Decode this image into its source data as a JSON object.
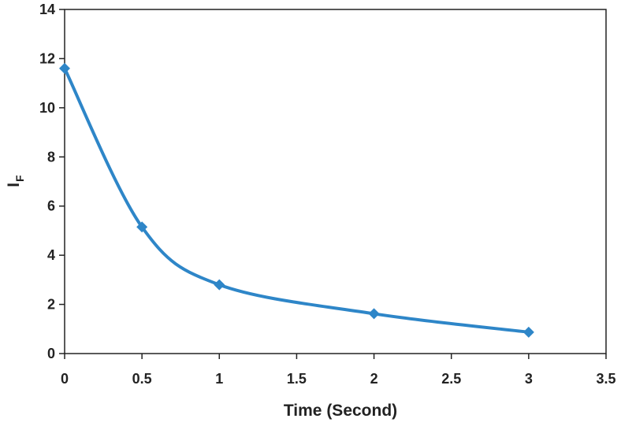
{
  "chart_data": {
    "type": "line",
    "title": "",
    "xlabel": "Time (Second)",
    "ylabel": {
      "main": "I",
      "subscript": "F"
    },
    "xlim": [
      0,
      3.5
    ],
    "ylim": [
      0,
      14
    ],
    "x_ticks": [
      "0",
      "0.5",
      "1",
      "1.5",
      "2",
      "2.5",
      "3",
      "3.5"
    ],
    "y_ticks": [
      "0",
      "2",
      "4",
      "6",
      "8",
      "10",
      "12",
      "14"
    ],
    "grid": false,
    "legend": "none",
    "smooth": true,
    "marker": "diamond",
    "color": "#2e86c8",
    "series": [
      {
        "x": [
          0,
          0.5,
          1,
          2,
          3
        ],
        "y": [
          11.6,
          5.15,
          2.8,
          1.62,
          0.87
        ]
      }
    ]
  }
}
